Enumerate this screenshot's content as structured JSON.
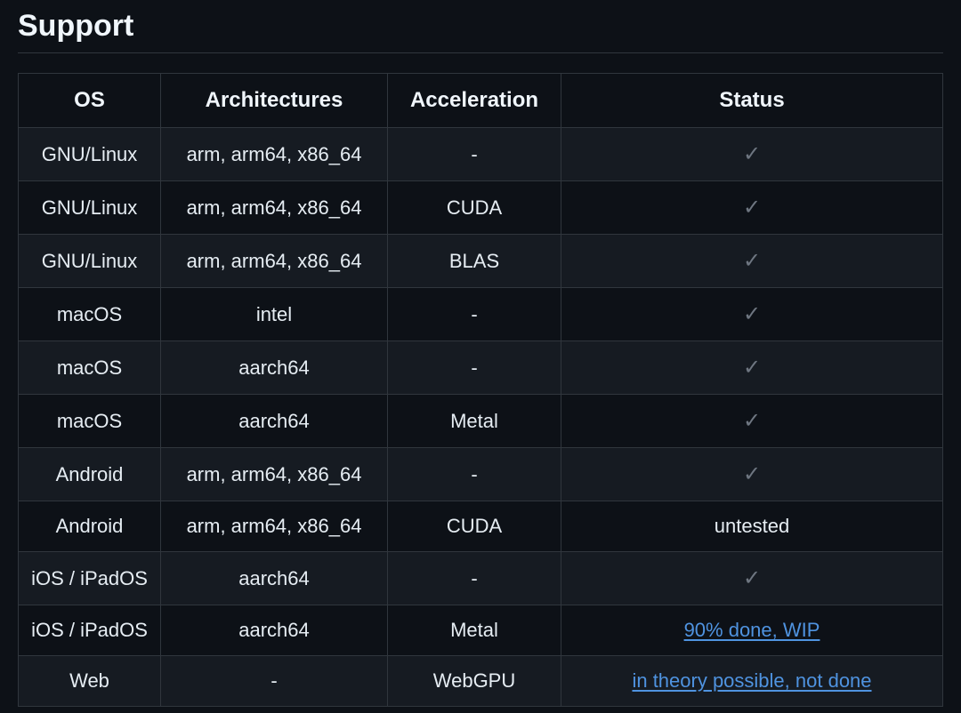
{
  "heading": "Support",
  "table": {
    "columns": [
      "OS",
      "Architectures",
      "Acceleration",
      "Status"
    ],
    "rows": [
      {
        "os": "GNU/Linux",
        "arch": "arm, arm64, x86_64",
        "accel": "-",
        "status_type": "check"
      },
      {
        "os": "GNU/Linux",
        "arch": "arm, arm64, x86_64",
        "accel": "CUDA",
        "status_type": "check"
      },
      {
        "os": "GNU/Linux",
        "arch": "arm, arm64, x86_64",
        "accel": "BLAS",
        "status_type": "check"
      },
      {
        "os": "macOS",
        "arch": "intel",
        "accel": "-",
        "status_type": "check"
      },
      {
        "os": "macOS",
        "arch": "aarch64",
        "accel": "-",
        "status_type": "check"
      },
      {
        "os": "macOS",
        "arch": "aarch64",
        "accel": "Metal",
        "status_type": "check"
      },
      {
        "os": "Android",
        "arch": "arm, arm64, x86_64",
        "accel": "-",
        "status_type": "check"
      },
      {
        "os": "Android",
        "arch": "arm, arm64, x86_64",
        "accel": "CUDA",
        "status_type": "text",
        "status_text": "untested"
      },
      {
        "os": "iOS / iPadOS",
        "arch": "aarch64",
        "accel": "-",
        "status_type": "check"
      },
      {
        "os": "iOS / iPadOS",
        "arch": "aarch64",
        "accel": "Metal",
        "status_type": "link",
        "status_text": "90% done, WIP"
      },
      {
        "os": "Web",
        "arch": "-",
        "accel": "WebGPU",
        "status_type": "link",
        "status_text": "in theory possible, not done"
      }
    ]
  },
  "styling": {
    "background_color": "#0d1117",
    "text_color": "#e6edf3",
    "heading_color": "#f0f6fc",
    "border_color": "#30363d",
    "row_alt_bg": "#161b22",
    "check_color": "#6e7681",
    "link_color": "#4f93e0",
    "heading_fontsize": 34,
    "th_fontsize": 24,
    "td_fontsize": 22
  },
  "check_glyph": "✓"
}
